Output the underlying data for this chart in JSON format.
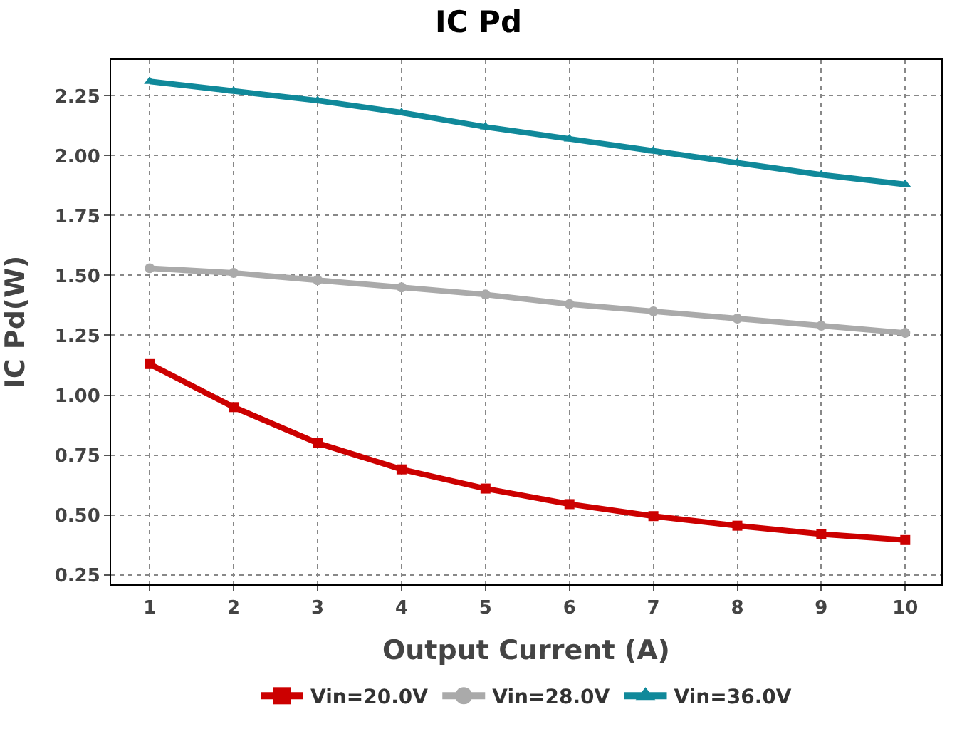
{
  "chart_data": {
    "type": "line",
    "title": "IC Pd",
    "xlabel": "Output Current (A)",
    "ylabel": "IC Pd(W)",
    "x": [
      1,
      2,
      3,
      4,
      5,
      6,
      7,
      8,
      9,
      10
    ],
    "series": [
      {
        "name": "Vin=20.0V",
        "color": "#cc0000",
        "marker": "square",
        "values": [
          1.13,
          0.95,
          0.8,
          0.69,
          0.61,
          0.545,
          0.495,
          0.455,
          0.42,
          0.395
        ]
      },
      {
        "name": "Vin=28.0V",
        "color": "#aaaaaa",
        "marker": "circle",
        "values": [
          1.53,
          1.51,
          1.48,
          1.45,
          1.42,
          1.38,
          1.35,
          1.32,
          1.29,
          1.26
        ]
      },
      {
        "name": "Vin=36.0V",
        "color": "#10899a",
        "marker": "triangle",
        "values": [
          2.31,
          2.27,
          2.23,
          2.18,
          2.12,
          2.07,
          2.02,
          1.97,
          1.92,
          1.88
        ]
      }
    ],
    "xlim": [
      0.54,
      10.43
    ],
    "xticks": [
      1,
      2,
      3,
      4,
      5,
      6,
      7,
      8,
      9,
      10
    ],
    "ylim": [
      0.21,
      2.4
    ],
    "yticks": [
      {
        "value": 0.25,
        "label": "0.25"
      },
      {
        "value": 0.5,
        "label": "0.50"
      },
      {
        "value": 0.75,
        "label": "0.75"
      },
      {
        "value": 1.0,
        "label": "1.00"
      },
      {
        "value": 1.25,
        "label": "1.25"
      },
      {
        "value": 1.5,
        "label": "1.50"
      },
      {
        "value": 1.75,
        "label": "1.75"
      },
      {
        "value": 2.0,
        "label": "2.00"
      },
      {
        "value": 2.25,
        "label": "2.25"
      }
    ],
    "grid": true,
    "legend": "bottom",
    "line_style": "solid"
  }
}
